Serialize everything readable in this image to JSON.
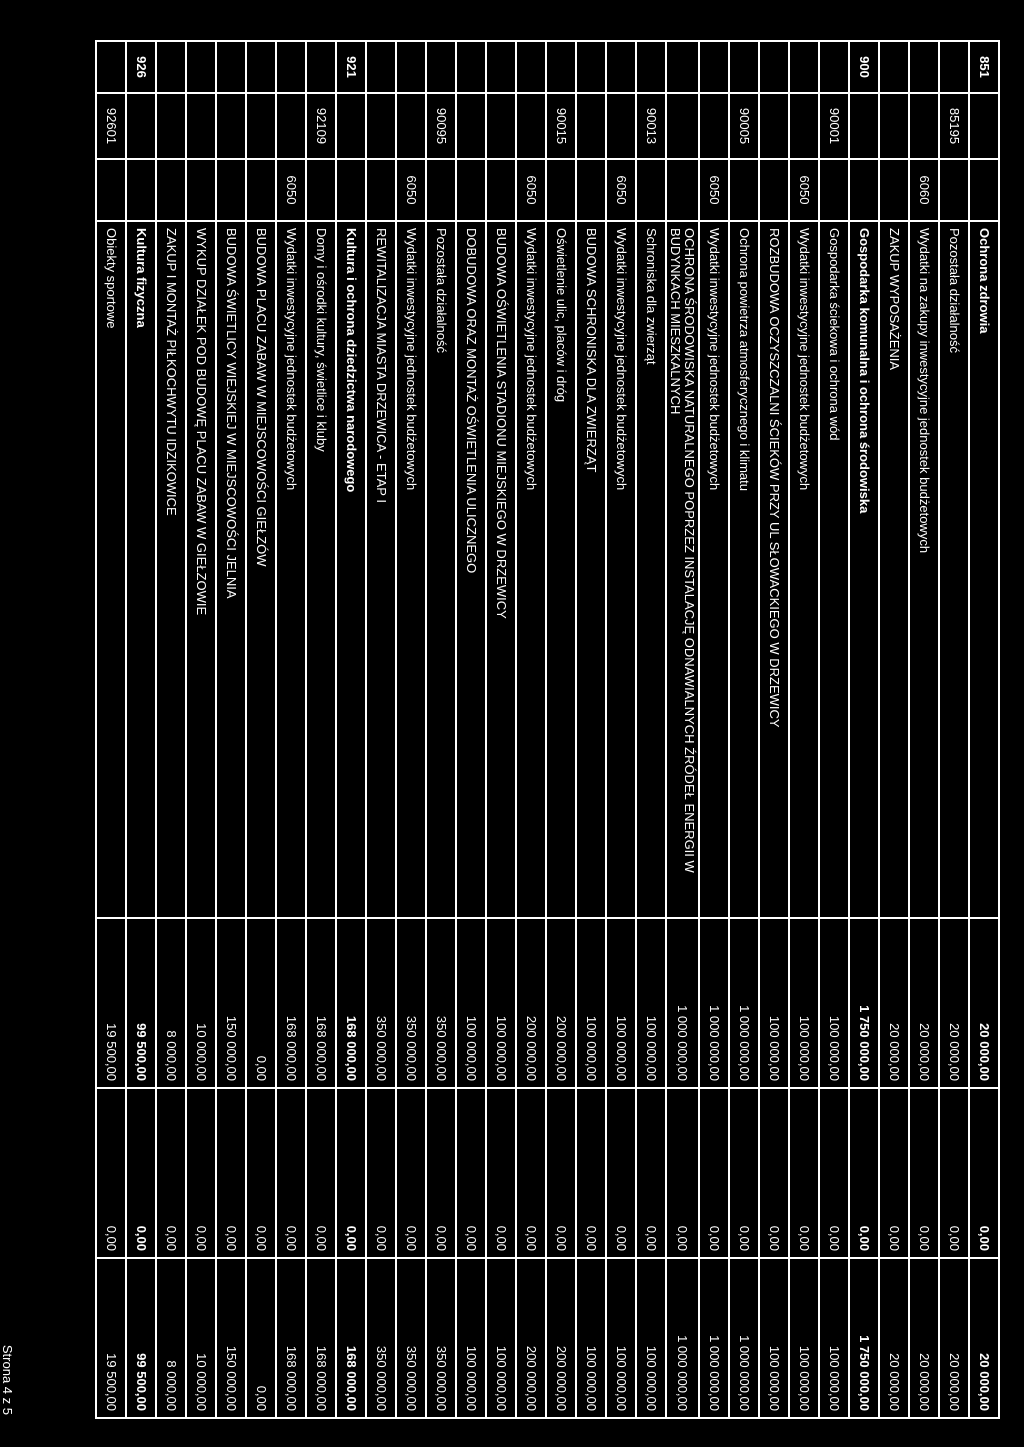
{
  "footer": "Strona 4 z 5",
  "rows": [
    {
      "c1": "851",
      "c4": "Ochrona zdrowia",
      "c5": "20 000,00",
      "c6": "0,00",
      "c7": "20 000,00",
      "bold": true,
      "show1": true
    },
    {
      "c2": "85195",
      "c4": "Pozostała działalność",
      "c5": "20 000,00",
      "c6": "0,00",
      "c7": "20 000,00",
      "show2": true
    },
    {
      "c3": "6060",
      "c4": "Wydatki na zakupy inwestycyjne jednostek budżetowych",
      "c5": "20 000,00",
      "c6": "0,00",
      "c7": "20 000,00",
      "show3": true
    },
    {
      "c4": "ZAKUP WYPOSAŻENIA",
      "c5": "20 000,00",
      "c6": "0,00",
      "c7": "20 000,00"
    },
    {
      "c1": "900",
      "c4": "Gospodarka komunalna i ochrona środowiska",
      "c5": "1 750 000,00",
      "c6": "0,00",
      "c7": "1 750 000,00",
      "bold": true,
      "show1": true
    },
    {
      "c2": "90001",
      "c4": "Gospodarka ściekowa i ochrona wód",
      "c5": "100 000,00",
      "c6": "0,00",
      "c7": "100 000,00",
      "show2": true
    },
    {
      "c3": "6050",
      "c4": "Wydatki inwestycyjne jednostek budżetowych",
      "c5": "100 000,00",
      "c6": "0,00",
      "c7": "100 000,00",
      "show3": true
    },
    {
      "c4": "ROZBUDOWA OCZYSZCZALNI ŚCIEKÓW PRZY UL SŁOWACKIEGO W DRZEWICY",
      "c5": "100 000,00",
      "c6": "0,00",
      "c7": "100 000,00"
    },
    {
      "c2": "90005",
      "c4": "Ochrona powietrza atmosferycznego i klimatu",
      "c5": "1 000 000,00",
      "c6": "0,00",
      "c7": "1 000 000,00",
      "show2": true
    },
    {
      "c3": "6050",
      "c4": "Wydatki inwestycyjne jednostek budżetowych",
      "c5": "1 000 000,00",
      "c6": "0,00",
      "c7": "1 000 000,00",
      "show3": true
    },
    {
      "c4": "OCHRONA ŚRODOWISKA NATURALNEGO POPRZEZ INSTALACJĘ ODNAWIALNYCH ŹRÓDEŁ ENERGII W BUDYNKACH MIESZKALNYCH",
      "c5": "1 000 000,00",
      "c6": "0,00",
      "c7": "1 000 000,00"
    },
    {
      "c2": "90013",
      "c4": "Schroniska dla zwierząt",
      "c5": "100 000,00",
      "c6": "0,00",
      "c7": "100 000,00",
      "show2": true
    },
    {
      "c3": "6050",
      "c4": "Wydatki inwestycyjne jednostek budżetowych",
      "c5": "100 000,00",
      "c6": "0,00",
      "c7": "100 000,00",
      "show3": true
    },
    {
      "c4": "BUDOWA SCHRONISKA DLA ZWIERZĄT",
      "c5": "100 000,00",
      "c6": "0,00",
      "c7": "100 000,00"
    },
    {
      "c2": "90015",
      "c4": "Oświetlenie ulic, placów i dróg",
      "c5": "200 000,00",
      "c6": "0,00",
      "c7": "200 000,00",
      "show2": true
    },
    {
      "c3": "6050",
      "c4": "Wydatki inwestycyjne jednostek budżetowych",
      "c5": "200 000,00",
      "c6": "0,00",
      "c7": "200 000,00",
      "show3": true
    },
    {
      "c4": "BUDOWA OŚWIETLENIA STADIONU MIEJSKIEGO W DRZEWICY",
      "c5": "100 000,00",
      "c6": "0,00",
      "c7": "100 000,00"
    },
    {
      "c4": "DOBUDOWA ORAZ MONTAŻ OŚWIETLENIA ULICZNEGO",
      "c5": "100 000,00",
      "c6": "0,00",
      "c7": "100 000,00"
    },
    {
      "c2": "90095",
      "c4": "Pozostała działalność",
      "c5": "350 000,00",
      "c6": "0,00",
      "c7": "350 000,00",
      "show2": true
    },
    {
      "c3": "6050",
      "c4": "Wydatki inwestycyjne jednostek budżetowych",
      "c5": "350 000,00",
      "c6": "0,00",
      "c7": "350 000,00",
      "show3": true
    },
    {
      "c4": "REWITALIZACJA MIASTA DRZEWICA - ETAP I",
      "c5": "350 000,00",
      "c6": "0,00",
      "c7": "350 000,00"
    },
    {
      "c1": "921",
      "c4": "Kultura i ochrona dziedzictwa narodowego",
      "c5": "168 000,00",
      "c6": "0,00",
      "c7": "168 000,00",
      "bold": true,
      "show1": true
    },
    {
      "c2": "92109",
      "c4": "Domy i ośrodki kultury, świetlice i kluby",
      "c5": "168 000,00",
      "c6": "0,00",
      "c7": "168 000,00",
      "show2": true
    },
    {
      "c3": "6050",
      "c4": "Wydatki inwestycyjne jednostek budżetowych",
      "c5": "168 000,00",
      "c6": "0,00",
      "c7": "168 000,00",
      "show3": true
    },
    {
      "c4": "BUDOWA PLACU ZABAW W MIEJSCOWOŚCI GIEŁZÓW",
      "c5": "0,00",
      "c6": "0,00",
      "c7": "0,00"
    },
    {
      "c4": "BUDOWA ŚWIETLICY WIEJSKIEJ W MIEJSCOWOŚCI JELNIA",
      "c5": "150 000,00",
      "c6": "0,00",
      "c7": "150 000,00"
    },
    {
      "c4": "WYKUP DZIAŁEK POD BUDOWĘ PLACU ZABAW W GIEŁZOWIE",
      "c5": "10 000,00",
      "c6": "0,00",
      "c7": "10 000,00"
    },
    {
      "c4": "ZAKUP I MONTAŻ PIŁKOCHWYTU IDZIKOWICE",
      "c5": "8 000,00",
      "c6": "0,00",
      "c7": "8 000,00"
    },
    {
      "c1": "926",
      "c4": "Kultura fizyczna",
      "c5": "99 500,00",
      "c6": "0,00",
      "c7": "99 500,00",
      "bold": true,
      "show1": true
    },
    {
      "c2": "92601",
      "c4": "Obiekty sportowe",
      "c5": "19 500,00",
      "c6": "0,00",
      "c7": "19 500,00",
      "show2": true
    }
  ]
}
